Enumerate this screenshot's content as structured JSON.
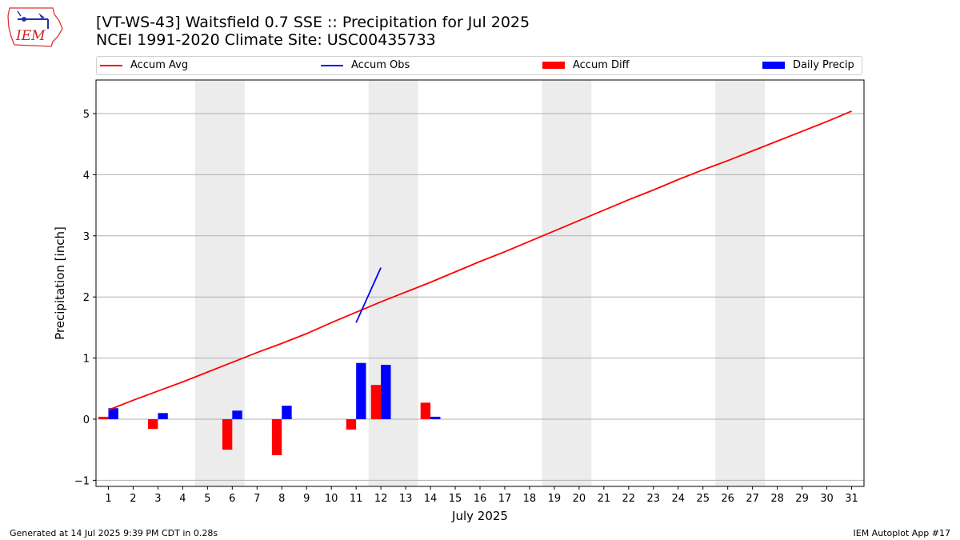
{
  "header": {
    "logo_text": "IEM",
    "title_line1": "[VT-WS-43] Waitsfield 0.7 SSE :: Precipitation for Jul 2025",
    "title_line2": "NCEI 1991-2020 Climate Site: USC00435733"
  },
  "legend": {
    "placement": "top",
    "items": [
      {
        "label": "Accum Avg",
        "kind": "line",
        "color": "#ff0000"
      },
      {
        "label": "Accum Obs",
        "kind": "line",
        "color": "#0000ff"
      },
      {
        "label": "Accum Diff",
        "kind": "bar",
        "color": "#ff0000"
      },
      {
        "label": "Daily Precip",
        "kind": "bar",
        "color": "#0000ff"
      }
    ]
  },
  "chart_data": {
    "type": "bar",
    "xlabel": "July 2025",
    "ylabel": "Precipitation [inch]",
    "xlim": [
      0.5,
      31.5
    ],
    "ylim": [
      -1.1,
      5.55
    ],
    "y_ticks": [
      -1,
      0,
      1,
      2,
      3,
      4,
      5
    ],
    "x_ticks": [
      1,
      2,
      3,
      4,
      5,
      6,
      7,
      8,
      9,
      10,
      11,
      12,
      13,
      14,
      15,
      16,
      17,
      18,
      19,
      20,
      21,
      22,
      23,
      24,
      25,
      26,
      27,
      28,
      29,
      30,
      31
    ],
    "grid": "horizontal",
    "weekend_shading": [
      [
        5,
        6
      ],
      [
        12,
        13
      ],
      [
        19,
        20
      ],
      [
        26,
        27
      ]
    ],
    "series": [
      {
        "name": "Accum Avg",
        "kind": "line",
        "color": "#ff0000",
        "x": [
          1,
          2,
          3,
          4,
          5,
          6,
          7,
          8,
          9,
          10,
          11,
          12,
          13,
          14,
          15,
          16,
          17,
          18,
          19,
          20,
          21,
          22,
          23,
          24,
          25,
          26,
          27,
          28,
          29,
          30,
          31
        ],
        "values": [
          0.15,
          0.31,
          0.46,
          0.61,
          0.77,
          0.93,
          1.09,
          1.24,
          1.4,
          1.58,
          1.75,
          1.92,
          2.08,
          2.24,
          2.41,
          2.58,
          2.74,
          2.91,
          3.08,
          3.25,
          3.42,
          3.59,
          3.75,
          3.92,
          4.08,
          4.23,
          4.39,
          4.55,
          4.71,
          4.87,
          5.04
        ]
      },
      {
        "name": "Accum Obs",
        "kind": "line",
        "color": "#0000ff",
        "x": [
          11,
          12
        ],
        "values": [
          1.58,
          2.48
        ]
      },
      {
        "name": "Accum Diff",
        "kind": "bar",
        "color": "#ff0000",
        "x": [
          1,
          3,
          6,
          8,
          11,
          12,
          14
        ],
        "values": [
          0.04,
          -0.16,
          -0.5,
          -0.59,
          -0.17,
          0.56,
          0.27
        ]
      },
      {
        "name": "Daily Precip",
        "kind": "bar",
        "color": "#0000ff",
        "x": [
          1,
          3,
          6,
          8,
          11,
          12,
          14
        ],
        "values": [
          0.18,
          0.1,
          0.14,
          0.22,
          0.92,
          0.89,
          0.04
        ]
      }
    ]
  },
  "footer": {
    "left": "Generated at 14 Jul 2025 9:39 PM CDT in 0.28s",
    "right": "IEM Autoplot App #17"
  }
}
